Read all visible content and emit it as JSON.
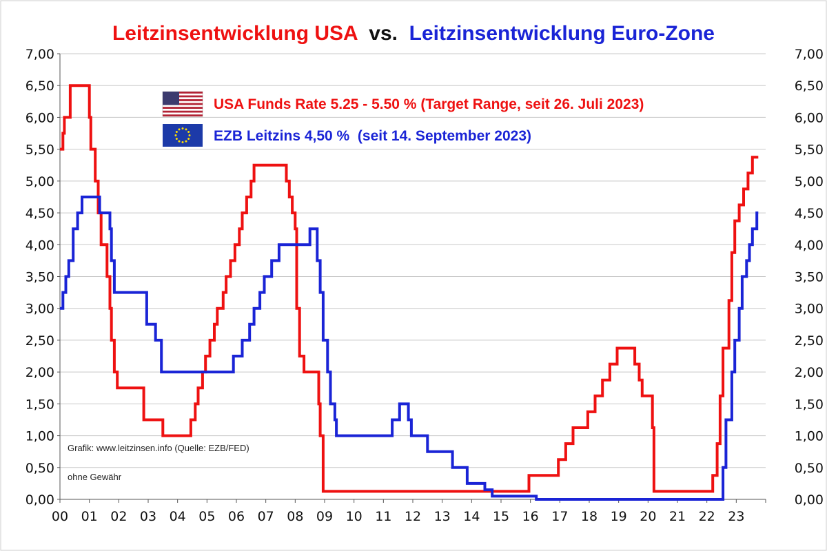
{
  "chart_data": {
    "type": "line",
    "title_parts": [
      {
        "text": "Leitzinsentwicklung USA",
        "color": "#ee1111"
      },
      {
        "text": " vs. ",
        "color": "#111111"
      },
      {
        "text": "Leitzinsentwicklung Euro-Zone",
        "color": "#1a24d6"
      }
    ],
    "x_ticks": [
      "00",
      "01",
      "02",
      "03",
      "04",
      "05",
      "06",
      "07",
      "08",
      "09",
      "10",
      "11",
      "12",
      "13",
      "14",
      "15",
      "16",
      "17",
      "18",
      "19",
      "20",
      "21",
      "22",
      "23"
    ],
    "y_ticks": [
      "0,00",
      "0,50",
      "1,00",
      "1,50",
      "2,00",
      "2,50",
      "3,00",
      "3,50",
      "4,00",
      "4,50",
      "5,00",
      "5,50",
      "6,00",
      "6,50",
      "7,00"
    ],
    "xlim": [
      2000.0,
      2024.0
    ],
    "ylim": [
      0,
      7
    ],
    "grid": "horizontal",
    "legend_position": "top-left",
    "legend": [
      {
        "label": "USA Funds Rate 5.25 - 5.50 % (Target Range, seit 26. Juli 2023)",
        "color": "#ee1111",
        "icon": "us-flag-icon"
      },
      {
        "label": "EZB Leitzins 4,50 %  (seit 14. September 2023)",
        "color": "#1a24d6",
        "icon": "eu-flag-icon"
      }
    ],
    "annotations": [
      "Grafik: www.leitzinsen.info (Quelle: EZB/FED)",
      "ohne Gewähr"
    ],
    "series": [
      {
        "color": "#ee1111",
        "step": true,
        "points": [
          [
            2000.0,
            5.5
          ],
          [
            2000.1,
            5.75
          ],
          [
            2000.15,
            6.0
          ],
          [
            2000.35,
            6.5
          ],
          [
            2001.0,
            6.0
          ],
          [
            2001.05,
            5.5
          ],
          [
            2001.2,
            5.0
          ],
          [
            2001.3,
            4.5
          ],
          [
            2001.4,
            4.0
          ],
          [
            2001.6,
            3.5
          ],
          [
            2001.7,
            3.0
          ],
          [
            2001.75,
            2.5
          ],
          [
            2001.85,
            2.0
          ],
          [
            2001.95,
            1.75
          ],
          [
            2002.85,
            1.25
          ],
          [
            2003.5,
            1.0
          ],
          [
            2004.45,
            1.25
          ],
          [
            2004.6,
            1.5
          ],
          [
            2004.7,
            1.75
          ],
          [
            2004.85,
            2.0
          ],
          [
            2004.95,
            2.25
          ],
          [
            2005.1,
            2.5
          ],
          [
            2005.25,
            2.75
          ],
          [
            2005.35,
            3.0
          ],
          [
            2005.55,
            3.25
          ],
          [
            2005.65,
            3.5
          ],
          [
            2005.8,
            3.75
          ],
          [
            2005.95,
            4.0
          ],
          [
            2006.1,
            4.25
          ],
          [
            2006.2,
            4.5
          ],
          [
            2006.35,
            4.75
          ],
          [
            2006.5,
            5.0
          ],
          [
            2006.6,
            5.25
          ],
          [
            2007.7,
            5.0
          ],
          [
            2007.8,
            4.75
          ],
          [
            2007.9,
            4.5
          ],
          [
            2008.0,
            4.25
          ],
          [
            2008.05,
            3.0
          ],
          [
            2008.15,
            2.25
          ],
          [
            2008.3,
            2.0
          ],
          [
            2008.8,
            1.5
          ],
          [
            2008.85,
            1.0
          ],
          [
            2008.95,
            0.125
          ],
          [
            2015.95,
            0.375
          ],
          [
            2016.95,
            0.625
          ],
          [
            2017.2,
            0.875
          ],
          [
            2017.45,
            1.125
          ],
          [
            2017.95,
            1.375
          ],
          [
            2018.2,
            1.625
          ],
          [
            2018.45,
            1.875
          ],
          [
            2018.7,
            2.125
          ],
          [
            2018.95,
            2.375
          ],
          [
            2019.55,
            2.125
          ],
          [
            2019.7,
            1.875
          ],
          [
            2019.8,
            1.625
          ],
          [
            2020.15,
            1.125
          ],
          [
            2020.2,
            0.125
          ],
          [
            2022.2,
            0.375
          ],
          [
            2022.35,
            0.875
          ],
          [
            2022.45,
            1.625
          ],
          [
            2022.55,
            2.375
          ],
          [
            2022.75,
            3.125
          ],
          [
            2022.85,
            3.875
          ],
          [
            2022.95,
            4.375
          ],
          [
            2023.1,
            4.625
          ],
          [
            2023.25,
            4.875
          ],
          [
            2023.4,
            5.125
          ],
          [
            2023.55,
            5.375
          ],
          [
            2023.75,
            5.375
          ]
        ]
      },
      {
        "color": "#1a24d6",
        "step": true,
        "points": [
          [
            2000.0,
            3.0
          ],
          [
            2000.1,
            3.25
          ],
          [
            2000.2,
            3.5
          ],
          [
            2000.3,
            3.75
          ],
          [
            2000.45,
            4.25
          ],
          [
            2000.6,
            4.5
          ],
          [
            2000.75,
            4.75
          ],
          [
            2001.35,
            4.5
          ],
          [
            2001.7,
            4.25
          ],
          [
            2001.75,
            3.75
          ],
          [
            2001.85,
            3.25
          ],
          [
            2002.95,
            2.75
          ],
          [
            2003.25,
            2.5
          ],
          [
            2003.45,
            2.0
          ],
          [
            2005.9,
            2.25
          ],
          [
            2006.2,
            2.5
          ],
          [
            2006.45,
            2.75
          ],
          [
            2006.6,
            3.0
          ],
          [
            2006.8,
            3.25
          ],
          [
            2006.95,
            3.5
          ],
          [
            2007.2,
            3.75
          ],
          [
            2007.45,
            4.0
          ],
          [
            2008.5,
            4.25
          ],
          [
            2008.75,
            3.75
          ],
          [
            2008.85,
            3.25
          ],
          [
            2008.95,
            2.5
          ],
          [
            2009.1,
            2.0
          ],
          [
            2009.2,
            1.5
          ],
          [
            2009.35,
            1.25
          ],
          [
            2009.4,
            1.0
          ],
          [
            2011.3,
            1.25
          ],
          [
            2011.55,
            1.5
          ],
          [
            2011.85,
            1.25
          ],
          [
            2011.95,
            1.0
          ],
          [
            2012.5,
            0.75
          ],
          [
            2013.35,
            0.5
          ],
          [
            2013.85,
            0.25
          ],
          [
            2014.45,
            0.15
          ],
          [
            2014.7,
            0.05
          ],
          [
            2016.2,
            0.0
          ],
          [
            2022.55,
            0.5
          ],
          [
            2022.65,
            1.25
          ],
          [
            2022.85,
            2.0
          ],
          [
            2022.95,
            2.5
          ],
          [
            2023.1,
            3.0
          ],
          [
            2023.2,
            3.5
          ],
          [
            2023.35,
            3.75
          ],
          [
            2023.45,
            4.0
          ],
          [
            2023.55,
            4.25
          ],
          [
            2023.7,
            4.5
          ],
          [
            2023.75,
            4.5
          ]
        ]
      }
    ]
  }
}
